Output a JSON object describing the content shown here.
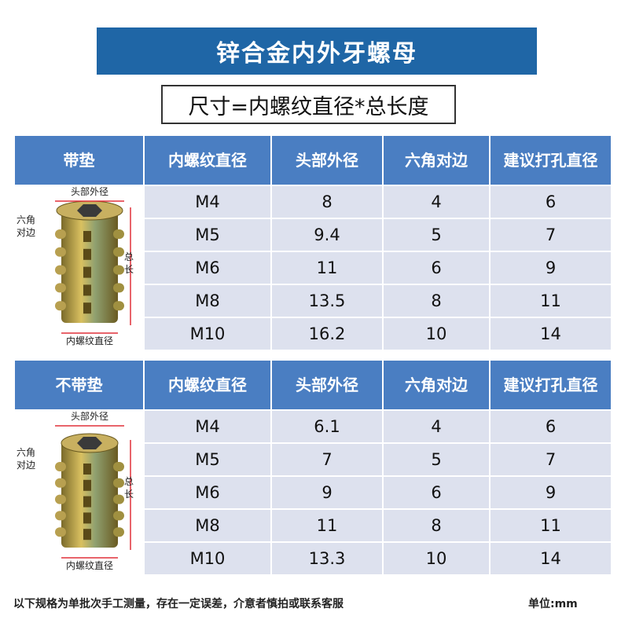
{
  "header": {
    "title": "锌合金内外牙螺母",
    "subtitle": "尺寸=内螺纹直径*总长度"
  },
  "tables": [
    {
      "columns": [
        "带垫",
        "内螺纹直径",
        "头部外径",
        "六角对边",
        "建议打孔直径"
      ],
      "diagram": {
        "head": "头部外径",
        "hex": "六角对边",
        "length": "总长",
        "thread": "内螺纹直径"
      },
      "rows": [
        [
          "M4",
          "8",
          "4",
          "6"
        ],
        [
          "M5",
          "9.4",
          "5",
          "7"
        ],
        [
          "M6",
          "11",
          "6",
          "9"
        ],
        [
          "M8",
          "13.5",
          "8",
          "11"
        ],
        [
          "M10",
          "16.2",
          "10",
          "14"
        ]
      ]
    },
    {
      "columns": [
        "不带垫",
        "内螺纹直径",
        "头部外径",
        "六角对边",
        "建议打孔直径"
      ],
      "diagram": {
        "head": "头部外径",
        "hex": "六角对边",
        "length": "总长",
        "thread": "内螺纹直径"
      },
      "rows": [
        [
          "M4",
          "6.1",
          "4",
          "6"
        ],
        [
          "M5",
          "7",
          "5",
          "7"
        ],
        [
          "M6",
          "9",
          "6",
          "9"
        ],
        [
          "M8",
          "11",
          "8",
          "11"
        ],
        [
          "M10",
          "13.3",
          "10",
          "14"
        ]
      ]
    }
  ],
  "footer": {
    "note": "以下规格为单批次手工测量，存在一定误差，介意者慎拍或联系客服",
    "unit": "单位:mm"
  }
}
